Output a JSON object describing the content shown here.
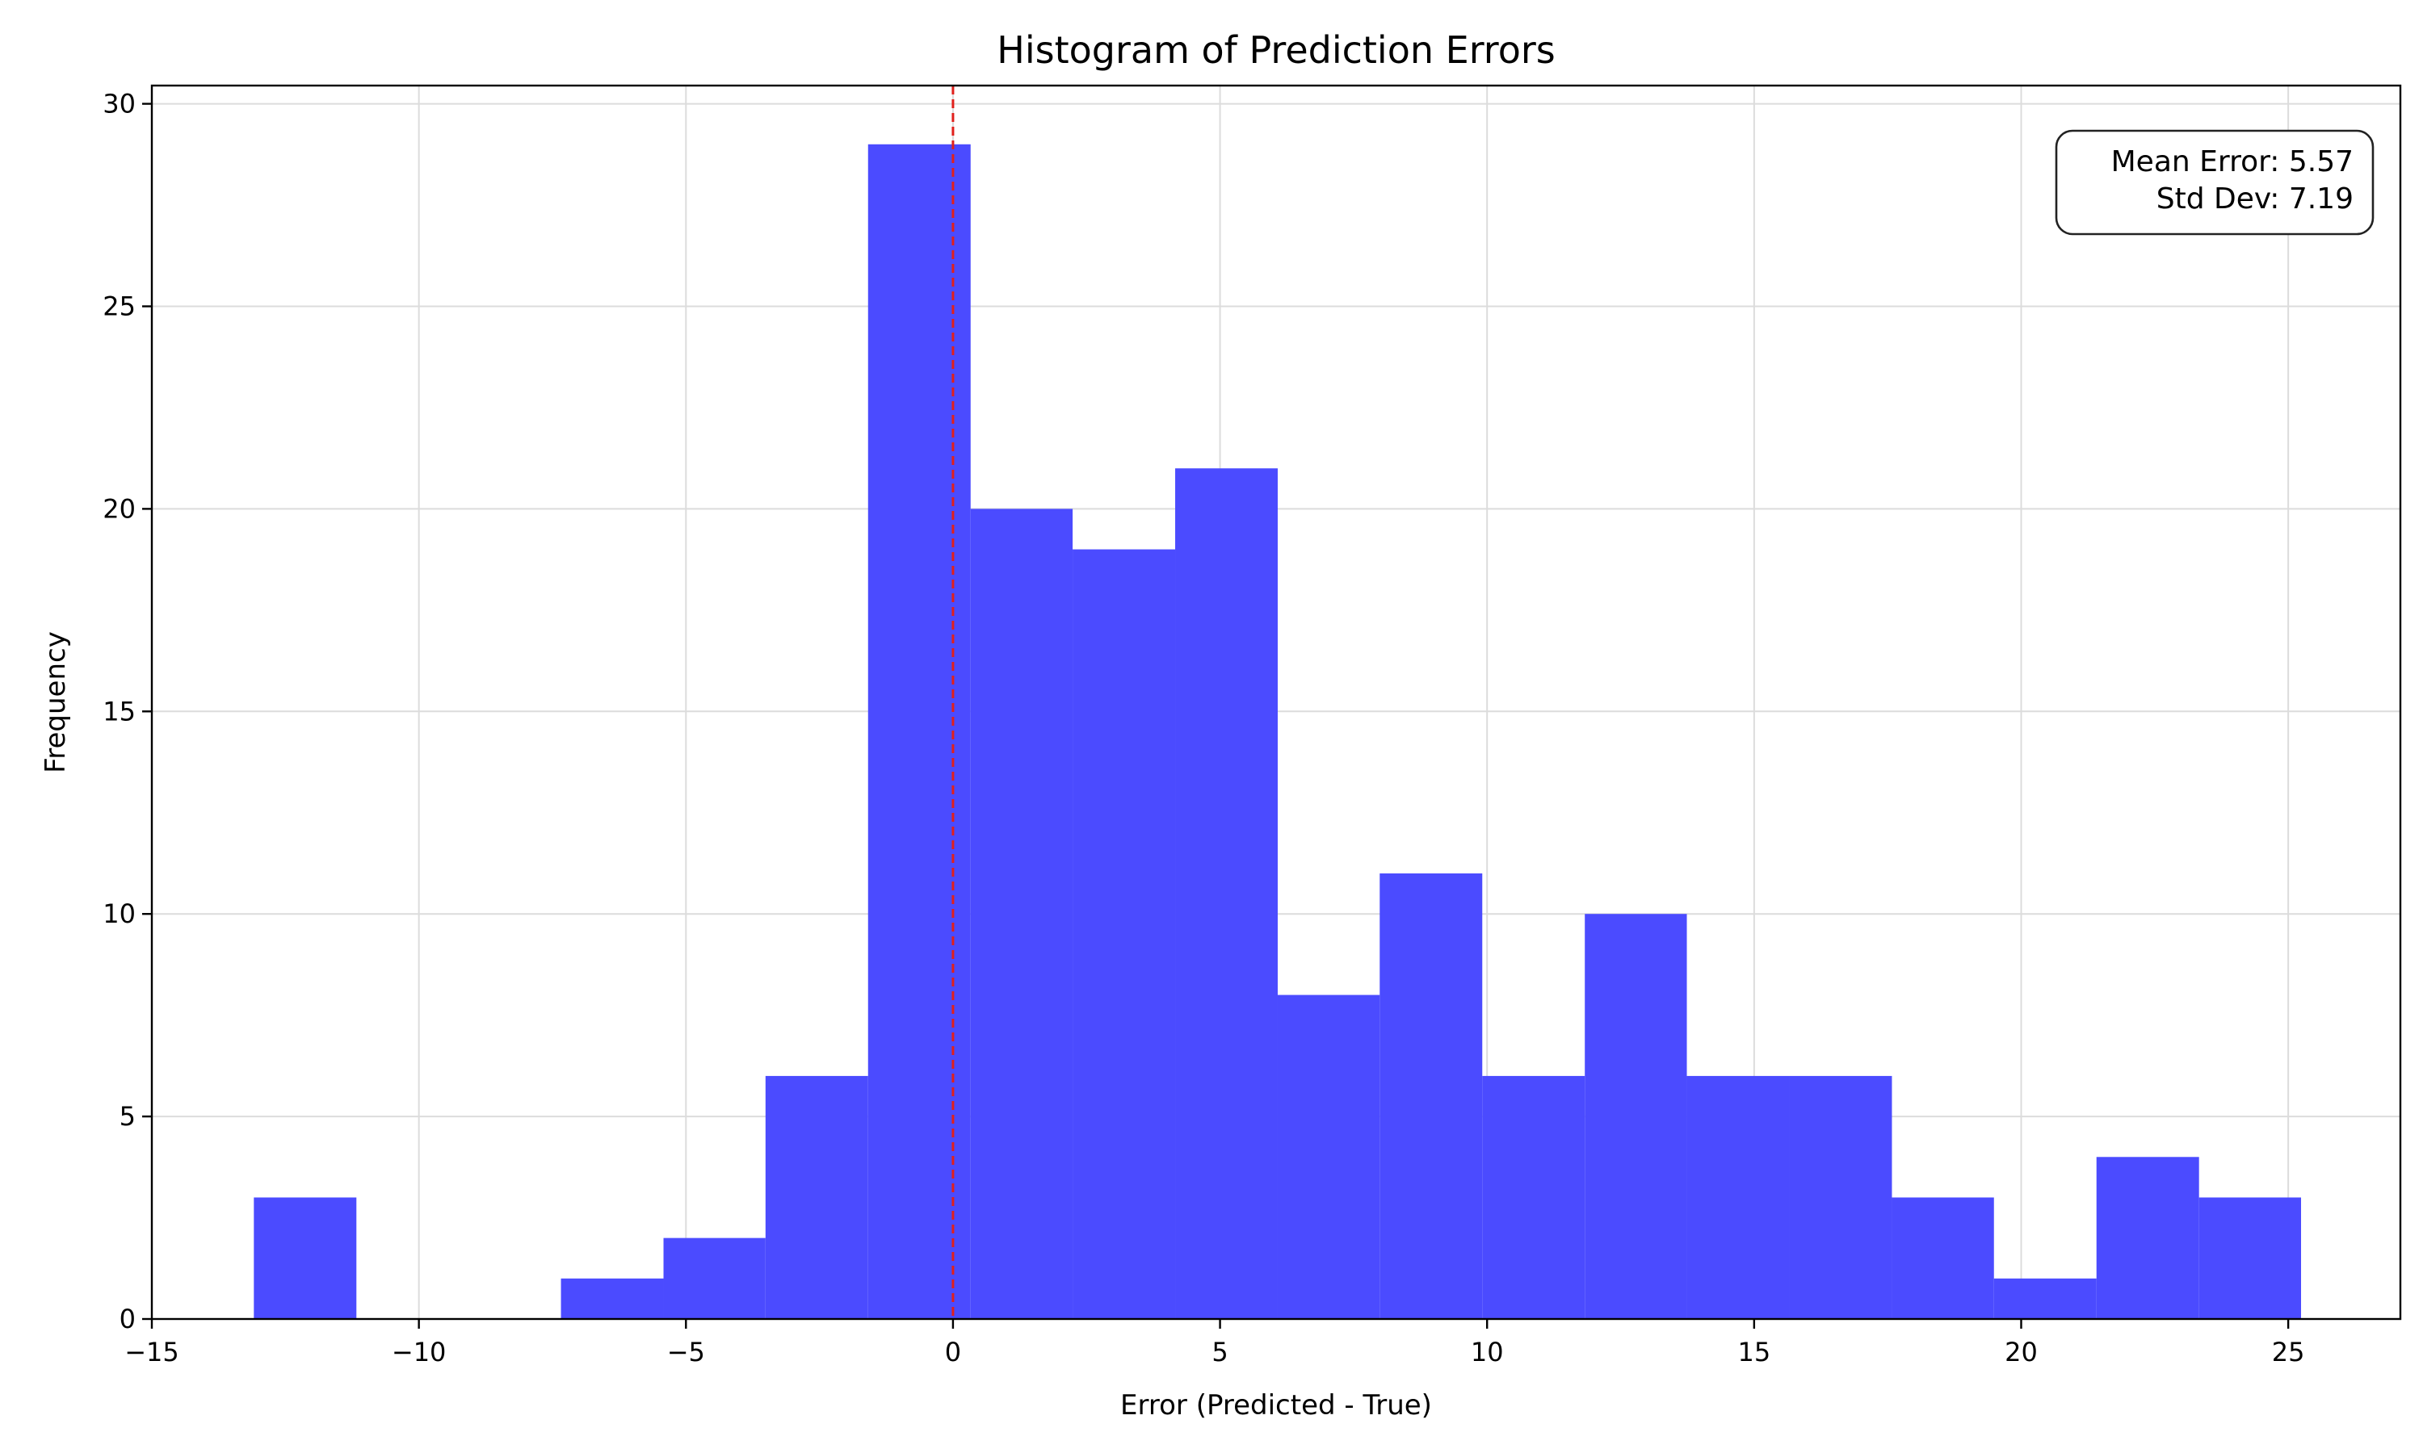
{
  "chart_data": {
    "type": "histogram",
    "title": "Histogram of Prediction Errors",
    "xlabel": "Error (Predicted - True)",
    "ylabel": "Frequency",
    "xlim": [
      -15,
      27.1
    ],
    "ylim": [
      0,
      30.45
    ],
    "xticks": [
      -15,
      -10,
      -5,
      0,
      5,
      10,
      15,
      20,
      25
    ],
    "xtick_labels": [
      "−15",
      "−10",
      "−5",
      "0",
      "5",
      "10",
      "15",
      "20",
      "25"
    ],
    "yticks": [
      0,
      5,
      10,
      15,
      20,
      25,
      30
    ],
    "ytick_labels": [
      "0",
      "5",
      "10",
      "15",
      "20",
      "25",
      "30"
    ],
    "grid": true,
    "bin_edges": [
      -13.09,
      -11.17,
      -9.26,
      -7.34,
      -5.42,
      -3.51,
      -1.59,
      0.33,
      2.24,
      4.16,
      6.08,
      7.99,
      9.91,
      11.83,
      13.74,
      15.66,
      17.58,
      19.49,
      21.41,
      23.33,
      25.24
    ],
    "counts": [
      3,
      0,
      0,
      1,
      2,
      6,
      29,
      20,
      19,
      21,
      8,
      11,
      6,
      10,
      6,
      6,
      3,
      1,
      4,
      3
    ],
    "bar_color": "#4b4bff",
    "reference_line": {
      "x": 0,
      "color": "#e0201c",
      "style": "dashed"
    },
    "annotation": {
      "lines": [
        "Mean Error: 5.57",
        "Std Dev: 7.19"
      ],
      "placement": "top-right"
    }
  }
}
